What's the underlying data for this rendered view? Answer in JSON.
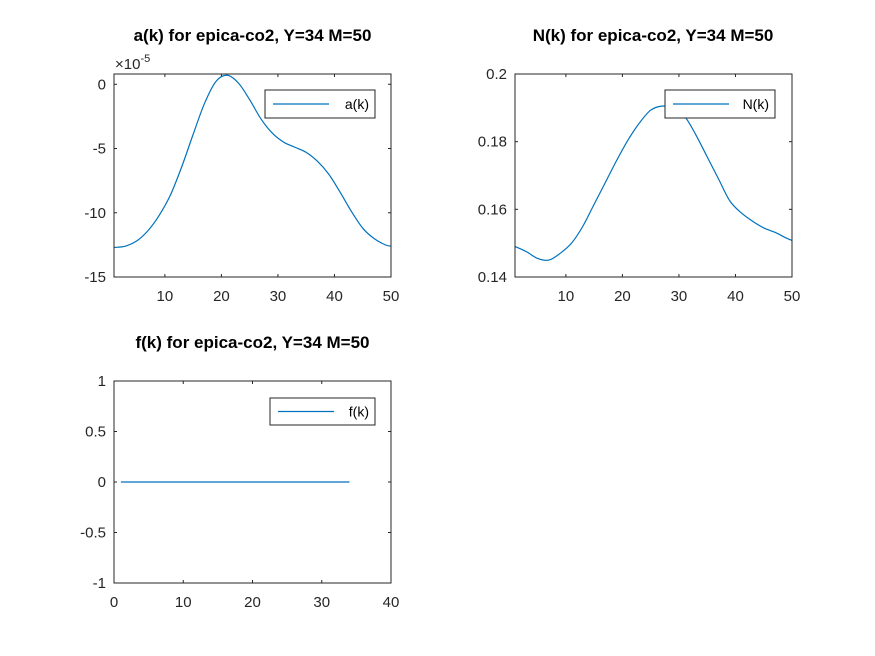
{
  "colors": {
    "line": "#0072BD",
    "axes": "#262626",
    "background": "#ffffff"
  },
  "chart_data": [
    {
      "id": "a",
      "type": "line",
      "title": "a(k) for epica-co2, Y=34 M=50",
      "xlim": [
        1,
        50
      ],
      "ylim": [
        -15,
        0.8
      ],
      "xticks": [
        10,
        20,
        30,
        40,
        50
      ],
      "yticks": [
        -15,
        -10,
        -5,
        0
      ],
      "ytick_labels": [
        "-15",
        "-10",
        "-5",
        "0"
      ],
      "y_exponent_label": "×10",
      "y_exponent_power": "-5",
      "legend": "a(k)",
      "legend_position": "top-right",
      "series": [
        {
          "name": "a(k)",
          "x": [
            1,
            3,
            5,
            7,
            9,
            11,
            13,
            15,
            17,
            19,
            21,
            23,
            25,
            27,
            29,
            31,
            33,
            35,
            37,
            39,
            41,
            43,
            45,
            47,
            49,
            50
          ],
          "y": [
            -12.7,
            -12.6,
            -12.2,
            -11.4,
            -10.2,
            -8.6,
            -6.4,
            -3.9,
            -1.5,
            0.2,
            0.7,
            0.1,
            -1.2,
            -2.7,
            -3.8,
            -4.5,
            -4.9,
            -5.3,
            -6.0,
            -7.0,
            -8.4,
            -9.9,
            -11.2,
            -12.0,
            -12.5,
            -12.6
          ]
        }
      ]
    },
    {
      "id": "N",
      "type": "line",
      "title": "N(k) for epica-co2, Y=34 M=50",
      "xlim": [
        1,
        50
      ],
      "ylim": [
        0.14,
        0.2
      ],
      "xticks": [
        10,
        20,
        30,
        40,
        50
      ],
      "yticks": [
        0.14,
        0.16,
        0.18,
        0.2
      ],
      "ytick_labels": [
        "0.14",
        "0.16",
        "0.18",
        "0.2"
      ],
      "legend": "N(k)",
      "legend_position": "top-right",
      "series": [
        {
          "name": "N(k)",
          "x": [
            1,
            3,
            5,
            7,
            9,
            11,
            13,
            15,
            17,
            19,
            21,
            23,
            25,
            27,
            29,
            31,
            33,
            35,
            37,
            39,
            41,
            43,
            45,
            47,
            49,
            50
          ],
          "y": [
            0.149,
            0.1475,
            0.1455,
            0.145,
            0.147,
            0.15,
            0.155,
            0.1615,
            0.168,
            0.1745,
            0.1805,
            0.1855,
            0.1893,
            0.1905,
            0.19,
            0.1875,
            0.182,
            0.1755,
            0.169,
            0.1625,
            0.159,
            0.1565,
            0.1545,
            0.1532,
            0.1515,
            0.1508
          ]
        }
      ]
    },
    {
      "id": "f",
      "type": "line",
      "title": "f(k) for epica-co2, Y=34 M=50",
      "xlim": [
        0,
        40
      ],
      "ylim": [
        -1,
        1
      ],
      "xticks": [
        0,
        10,
        20,
        30,
        40
      ],
      "yticks": [
        -1,
        -0.5,
        0,
        0.5,
        1
      ],
      "ytick_labels": [
        "-1",
        "-0.5",
        "0",
        "0.5",
        "1"
      ],
      "legend": "f(k)",
      "legend_position": "top-right",
      "series": [
        {
          "name": "f(k)",
          "x": [
            1,
            34
          ],
          "y": [
            0,
            0
          ]
        }
      ]
    }
  ]
}
